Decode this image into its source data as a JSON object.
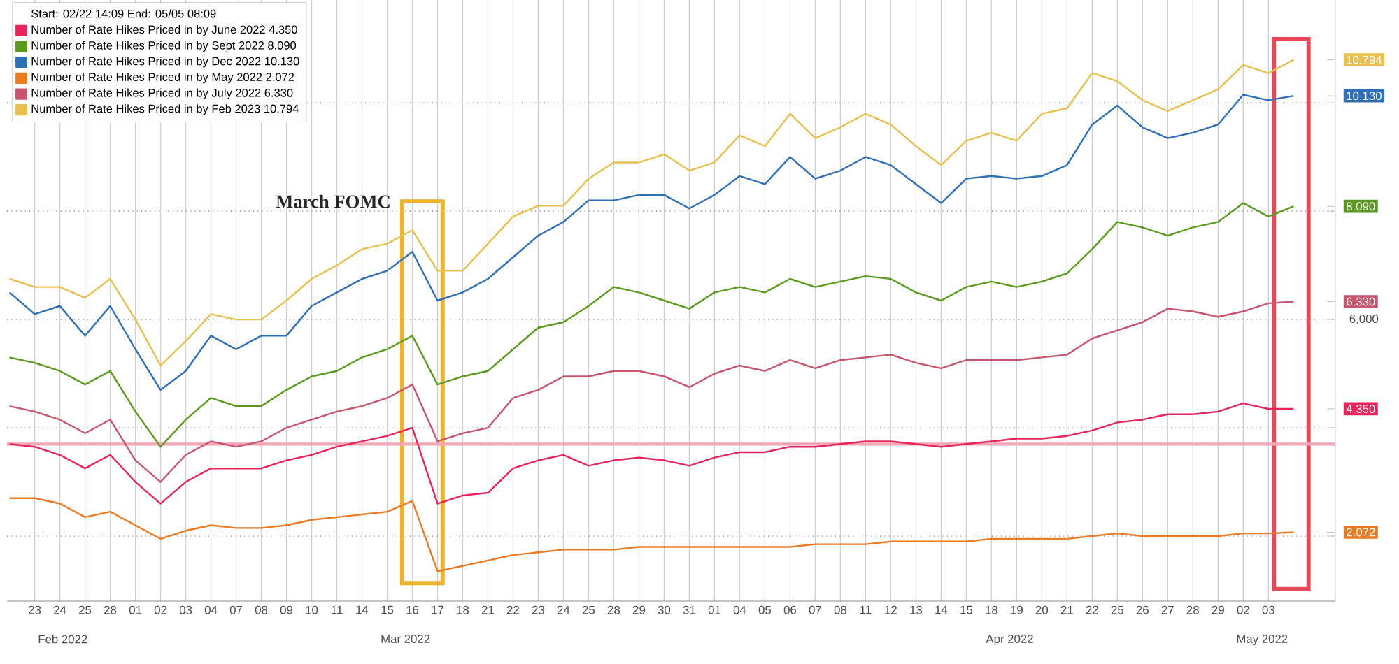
{
  "chart_data": {
    "type": "line",
    "legend_title": "Start: 02/22 14:09 End: 05/05 08:09",
    "categories": [
      null,
      "23",
      "24",
      "25",
      "28",
      "01",
      "02",
      "03",
      "04",
      "07",
      "08",
      "09",
      "10",
      "11",
      "14",
      "15",
      "16",
      "17",
      "18",
      "21",
      "22",
      "23",
      "24",
      "25",
      "28",
      "29",
      "30",
      "31",
      "01",
      "04",
      "05",
      "06",
      "07",
      "08",
      "11",
      "12",
      "13",
      "14",
      "15",
      "18",
      "19",
      "20",
      "21",
      "22",
      "25",
      "26",
      "27",
      "28",
      "29",
      "02",
      "03",
      null
    ],
    "series": [
      {
        "name": "Number of Rate Hikes Priced in by June 2022 4.350",
        "color": "#e8245a",
        "values": [
          3.7,
          3.65,
          3.5,
          3.25,
          3.5,
          3.0,
          2.6,
          3.0,
          3.25,
          3.25,
          3.25,
          3.4,
          3.5,
          3.65,
          3.75,
          3.85,
          4.0,
          2.6,
          2.75,
          2.8,
          3.25,
          3.4,
          3.5,
          3.3,
          3.4,
          3.45,
          3.4,
          3.3,
          3.45,
          3.55,
          3.55,
          3.65,
          3.65,
          3.7,
          3.75,
          3.75,
          3.7,
          3.65,
          3.7,
          3.75,
          3.8,
          3.8,
          3.85,
          3.95,
          4.1,
          4.15,
          4.25,
          4.25,
          4.3,
          4.45,
          4.35,
          4.35
        ]
      },
      {
        "name": "Number of Rate Hikes Priced in by Sept 2022 8.090",
        "color": "#5b9a1f",
        "values": [
          5.3,
          5.2,
          5.05,
          4.8,
          5.05,
          4.3,
          3.65,
          4.15,
          4.55,
          4.4,
          4.4,
          4.7,
          4.95,
          5.05,
          5.3,
          5.45,
          5.7,
          4.8,
          4.95,
          5.05,
          5.45,
          5.85,
          5.95,
          6.25,
          6.6,
          6.5,
          6.35,
          6.2,
          6.5,
          6.6,
          6.5,
          6.75,
          6.6,
          6.7,
          6.8,
          6.75,
          6.5,
          6.35,
          6.6,
          6.7,
          6.6,
          6.7,
          6.85,
          7.3,
          7.8,
          7.7,
          7.55,
          7.7,
          7.8,
          8.15,
          7.9,
          8.09
        ]
      },
      {
        "name": "Number of Rate Hikes Priced in by Dec 2022 10.130",
        "color": "#2f6fb5",
        "values": [
          6.5,
          6.1,
          6.25,
          5.7,
          6.25,
          5.45,
          4.7,
          5.05,
          5.7,
          5.45,
          5.7,
          5.7,
          6.25,
          6.5,
          6.75,
          6.9,
          7.25,
          6.35,
          6.5,
          6.75,
          7.15,
          7.55,
          7.8,
          8.2,
          8.2,
          8.3,
          8.3,
          8.05,
          8.3,
          8.65,
          8.5,
          9.0,
          8.6,
          8.75,
          9.0,
          8.85,
          8.5,
          8.15,
          8.6,
          8.65,
          8.6,
          8.65,
          8.85,
          9.6,
          9.95,
          9.55,
          9.35,
          9.45,
          9.6,
          10.15,
          10.05,
          10.13
        ]
      },
      {
        "name": "Number of Rate Hikes Priced in by May 2022 2.072",
        "color": "#ec7a22",
        "values": [
          2.7,
          2.7,
          2.6,
          2.35,
          2.45,
          2.2,
          1.95,
          2.1,
          2.2,
          2.15,
          2.15,
          2.2,
          2.3,
          2.35,
          2.4,
          2.45,
          2.65,
          1.35,
          1.45,
          1.55,
          1.65,
          1.7,
          1.75,
          1.75,
          1.75,
          1.8,
          1.8,
          1.8,
          1.8,
          1.8,
          1.8,
          1.8,
          1.85,
          1.85,
          1.85,
          1.9,
          1.9,
          1.9,
          1.9,
          1.95,
          1.95,
          1.95,
          1.95,
          2.0,
          2.05,
          2.0,
          2.0,
          2.0,
          2.0,
          2.05,
          2.05,
          2.072
        ]
      },
      {
        "name": "Number of Rate Hikes Priced in by July 2022 6.330",
        "color": "#c8556e",
        "values": [
          4.4,
          4.3,
          4.15,
          3.9,
          4.15,
          3.4,
          3.0,
          3.5,
          3.75,
          3.65,
          3.75,
          4.0,
          4.15,
          4.3,
          4.4,
          4.55,
          4.8,
          3.75,
          3.9,
          4.0,
          4.55,
          4.7,
          4.95,
          4.95,
          5.05,
          5.05,
          4.95,
          4.75,
          5.0,
          5.15,
          5.05,
          5.25,
          5.1,
          5.25,
          5.3,
          5.35,
          5.2,
          5.1,
          5.25,
          5.25,
          5.25,
          5.3,
          5.35,
          5.65,
          5.8,
          5.95,
          6.2,
          6.15,
          6.05,
          6.15,
          6.3,
          6.33
        ]
      },
      {
        "name": "Number of Rate Hikes Priced in by Feb 2023 10.794",
        "color": "#e8c050",
        "values": [
          6.75,
          6.6,
          6.6,
          6.4,
          6.75,
          6.0,
          5.15,
          5.6,
          6.1,
          6.0,
          6.0,
          6.35,
          6.75,
          7.0,
          7.3,
          7.4,
          7.65,
          6.9,
          6.9,
          7.4,
          7.9,
          8.1,
          8.1,
          8.6,
          8.9,
          8.9,
          9.05,
          8.75,
          8.9,
          9.4,
          9.2,
          9.8,
          9.35,
          9.55,
          9.8,
          9.6,
          9.2,
          8.85,
          9.3,
          9.45,
          9.3,
          9.8,
          9.9,
          10.55,
          10.4,
          10.05,
          9.85,
          10.05,
          10.25,
          10.7,
          10.55,
          10.794
        ]
      }
    ],
    "ylim": [
      0.8,
      11.9
    ],
    "yticks": [
      {
        "value": 2,
        "label": null
      },
      {
        "value": 4,
        "label": null
      },
      {
        "value": 6,
        "label": null
      },
      {
        "value": 8,
        "label": null
      },
      {
        "value": 10,
        "label": null
      },
      2.072,
      {
        "value": 4.35,
        "label": "4.350"
      },
      {
        "value": 6.33,
        "label": "6.330"
      },
      {
        "value": 8.09,
        "label": "8.090"
      },
      {
        "value": 10.13,
        "label": "10.130"
      },
      10.794
    ],
    "grid": true,
    "legend": "top left",
    "ref_lines": [
      {
        "axis": "y",
        "value": 3.7,
        "color": "#f4a6b6"
      }
    ],
    "annotations": [
      "March FOMC",
      "Feb 2022",
      "Mar 2022",
      "Apr 2022",
      "May 2022",
      "6,000"
    ]
  }
}
